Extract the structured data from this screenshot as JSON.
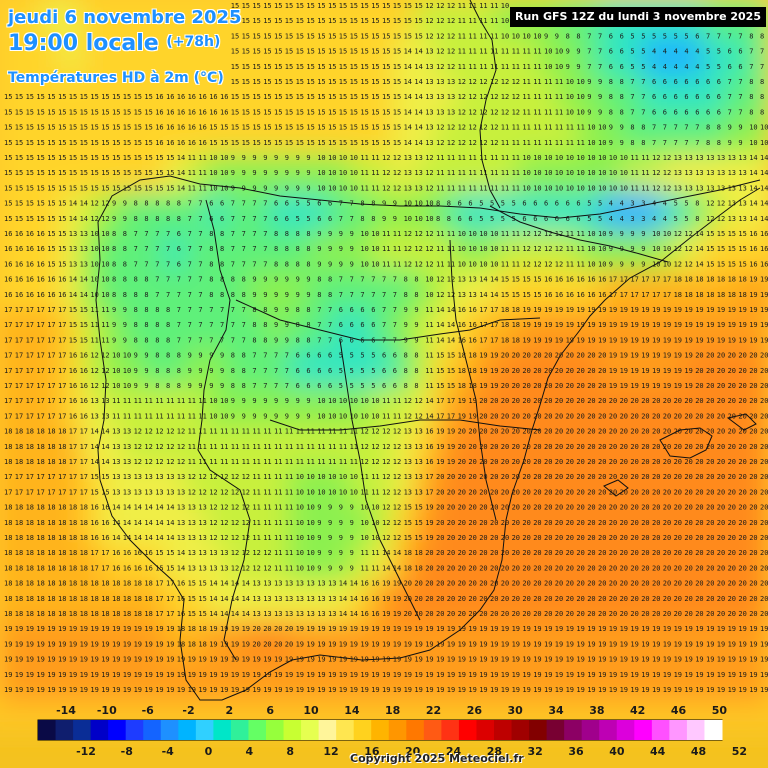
{
  "header": {
    "date": "jeudi 6 novembre 2025",
    "time": "19:00 locale",
    "lead": "(+78h)",
    "product": "Températures HD à 2m (°C)",
    "run": "Run GFS 12Z du lundi 3 novembre 2025"
  },
  "footer": {
    "copyright": "Copyright 2025 Meteociel.fr"
  },
  "legend": {
    "top_labels": [
      "-14",
      "-10",
      "-6",
      "-2",
      "2",
      "6",
      "10",
      "14",
      "18",
      "22",
      "26",
      "30",
      "34",
      "38",
      "42",
      "46",
      "50"
    ],
    "bottom_labels": [
      "-12",
      "-8",
      "-4",
      "0",
      "4",
      "8",
      "12",
      "16",
      "20",
      "24",
      "28",
      "32",
      "36",
      "40",
      "44",
      "48",
      "52"
    ],
    "colors": [
      "#0a0a46",
      "#0f1e6e",
      "#0a2d96",
      "#0000c8",
      "#0000ff",
      "#1e3cff",
      "#1464ff",
      "#1e90ff",
      "#00b4ff",
      "#30d0ff",
      "#00e6c8",
      "#30f09a",
      "#64ff64",
      "#96ff3c",
      "#c8ff32",
      "#e6ff50",
      "#fff59a",
      "#ffe650",
      "#ffd21e",
      "#ffb400",
      "#ff9600",
      "#ff7800",
      "#ff5a14",
      "#ff3214",
      "#ff0000",
      "#dc0000",
      "#be0000",
      "#a00000",
      "#820000",
      "#780032",
      "#8c0064",
      "#a0008c",
      "#be00b4",
      "#dc00dc",
      "#ff00ff",
      "#ff50ff",
      "#ff96ff",
      "#ffc8ff",
      "#ffffff"
    ]
  },
  "map": {
    "temperature_sample": [
      [
        15,
        15,
        14,
        14,
        15,
        15,
        15,
        15,
        15,
        15,
        15,
        15,
        15,
        15,
        15,
        15,
        15,
        15,
        15,
        15,
        12,
        12,
        11,
        11,
        10,
        10,
        9,
        8,
        7,
        6,
        5,
        5,
        5,
        6,
        7,
        7,
        8
      ],
      [
        15,
        15,
        15,
        14,
        15,
        15,
        15,
        15,
        16,
        16,
        15,
        15,
        15,
        15,
        15,
        15,
        15,
        15,
        15,
        14,
        13,
        12,
        11,
        11,
        11,
        11,
        10,
        9,
        7,
        6,
        5,
        4,
        4,
        4,
        5,
        6,
        7
      ],
      [
        15,
        15,
        15,
        15,
        15,
        15,
        15,
        16,
        16,
        16,
        16,
        15,
        15,
        15,
        15,
        15,
        15,
        15,
        15,
        14,
        13,
        13,
        12,
        12,
        12,
        11,
        11,
        10,
        9,
        8,
        7,
        6,
        6,
        6,
        6,
        7,
        8
      ],
      [
        15,
        15,
        15,
        15,
        15,
        15,
        15,
        16,
        16,
        16,
        15,
        15,
        15,
        15,
        15,
        15,
        15,
        15,
        15,
        14,
        13,
        12,
        12,
        12,
        11,
        11,
        11,
        11,
        10,
        9,
        8,
        7,
        7,
        7,
        8,
        9,
        10
      ],
      [
        15,
        15,
        15,
        15,
        15,
        15,
        15,
        15,
        14,
        11,
        10,
        9,
        9,
        9,
        9,
        10,
        10,
        11,
        12,
        13,
        12,
        11,
        11,
        11,
        11,
        10,
        10,
        10,
        10,
        10,
        11,
        12,
        13,
        13,
        13,
        13,
        14
      ],
      [
        15,
        15,
        15,
        14,
        12,
        9,
        8,
        8,
        8,
        7,
        6,
        7,
        7,
        6,
        5,
        6,
        7,
        8,
        9,
        10,
        10,
        8,
        6,
        5,
        5,
        6,
        6,
        6,
        5,
        4,
        3,
        4,
        5,
        8,
        12,
        13,
        14
      ],
      [
        16,
        16,
        15,
        13,
        10,
        8,
        7,
        7,
        6,
        7,
        8,
        7,
        7,
        8,
        8,
        9,
        9,
        10,
        11,
        12,
        12,
        11,
        10,
        10,
        11,
        12,
        12,
        11,
        10,
        9,
        9,
        10,
        12,
        14,
        15,
        15,
        16
      ],
      [
        16,
        16,
        16,
        14,
        10,
        8,
        8,
        7,
        7,
        7,
        8,
        8,
        9,
        9,
        9,
        8,
        7,
        7,
        7,
        8,
        10,
        12,
        13,
        14,
        15,
        15,
        16,
        16,
        16,
        17,
        17,
        17,
        18,
        18,
        18,
        18,
        19
      ],
      [
        17,
        17,
        17,
        15,
        11,
        9,
        8,
        8,
        7,
        7,
        7,
        7,
        8,
        9,
        8,
        7,
        6,
        6,
        7,
        9,
        11,
        14,
        16,
        17,
        18,
        19,
        19,
        19,
        19,
        19,
        19,
        19,
        19,
        19,
        19,
        19,
        19
      ],
      [
        17,
        17,
        17,
        16,
        12,
        10,
        9,
        8,
        8,
        9,
        9,
        8,
        7,
        7,
        6,
        6,
        5,
        5,
        6,
        8,
        11,
        15,
        18,
        19,
        20,
        20,
        20,
        20,
        20,
        19,
        19,
        19,
        19,
        20,
        20,
        20,
        20
      ],
      [
        17,
        17,
        17,
        16,
        13,
        11,
        11,
        11,
        11,
        11,
        10,
        9,
        9,
        9,
        9,
        10,
        10,
        10,
        11,
        12,
        14,
        17,
        19,
        20,
        20,
        20,
        20,
        20,
        20,
        20,
        20,
        20,
        20,
        20,
        20,
        20,
        20
      ],
      [
        18,
        18,
        18,
        17,
        14,
        13,
        12,
        12,
        12,
        11,
        11,
        11,
        11,
        11,
        11,
        11,
        11,
        12,
        12,
        13,
        16,
        19,
        20,
        20,
        20,
        20,
        20,
        20,
        20,
        20,
        20,
        20,
        20,
        20,
        20,
        20,
        20
      ],
      [
        17,
        17,
        17,
        17,
        15,
        13,
        13,
        13,
        13,
        12,
        12,
        12,
        11,
        11,
        10,
        10,
        10,
        11,
        12,
        13,
        17,
        20,
        20,
        20,
        20,
        20,
        20,
        20,
        20,
        20,
        20,
        20,
        20,
        20,
        20,
        20,
        20
      ],
      [
        18,
        18,
        18,
        18,
        16,
        14,
        14,
        14,
        13,
        13,
        12,
        12,
        11,
        11,
        10,
        9,
        9,
        10,
        12,
        15,
        19,
        20,
        20,
        20,
        20,
        20,
        20,
        20,
        20,
        20,
        20,
        20,
        20,
        20,
        20,
        20,
        20
      ],
      [
        18,
        18,
        18,
        18,
        17,
        16,
        16,
        15,
        14,
        13,
        13,
        12,
        12,
        11,
        10,
        9,
        9,
        11,
        14,
        18,
        20,
        20,
        20,
        20,
        20,
        20,
        20,
        20,
        20,
        20,
        20,
        20,
        20,
        20,
        20,
        20,
        20
      ],
      [
        18,
        18,
        18,
        18,
        18,
        18,
        18,
        17,
        16,
        15,
        14,
        14,
        13,
        13,
        13,
        13,
        14,
        16,
        19,
        20,
        20,
        20,
        20,
        20,
        20,
        20,
        20,
        20,
        20,
        20,
        20,
        20,
        20,
        20,
        20,
        20,
        20
      ],
      [
        19,
        19,
        19,
        19,
        19,
        19,
        19,
        19,
        18,
        18,
        19,
        19,
        20,
        20,
        19,
        19,
        19,
        19,
        19,
        19,
        19,
        19,
        19,
        19,
        19,
        19,
        19,
        19,
        19,
        19,
        19,
        19,
        19,
        19,
        19,
        19,
        19
      ],
      [
        19,
        19,
        19,
        19,
        19,
        19,
        19,
        19,
        19,
        19,
        19,
        19,
        19,
        19,
        19,
        19,
        19,
        19,
        19,
        19,
        19,
        19,
        19,
        19,
        19,
        19,
        19,
        19,
        19,
        19,
        19,
        19,
        19,
        19,
        19,
        19,
        19
      ]
    ]
  }
}
